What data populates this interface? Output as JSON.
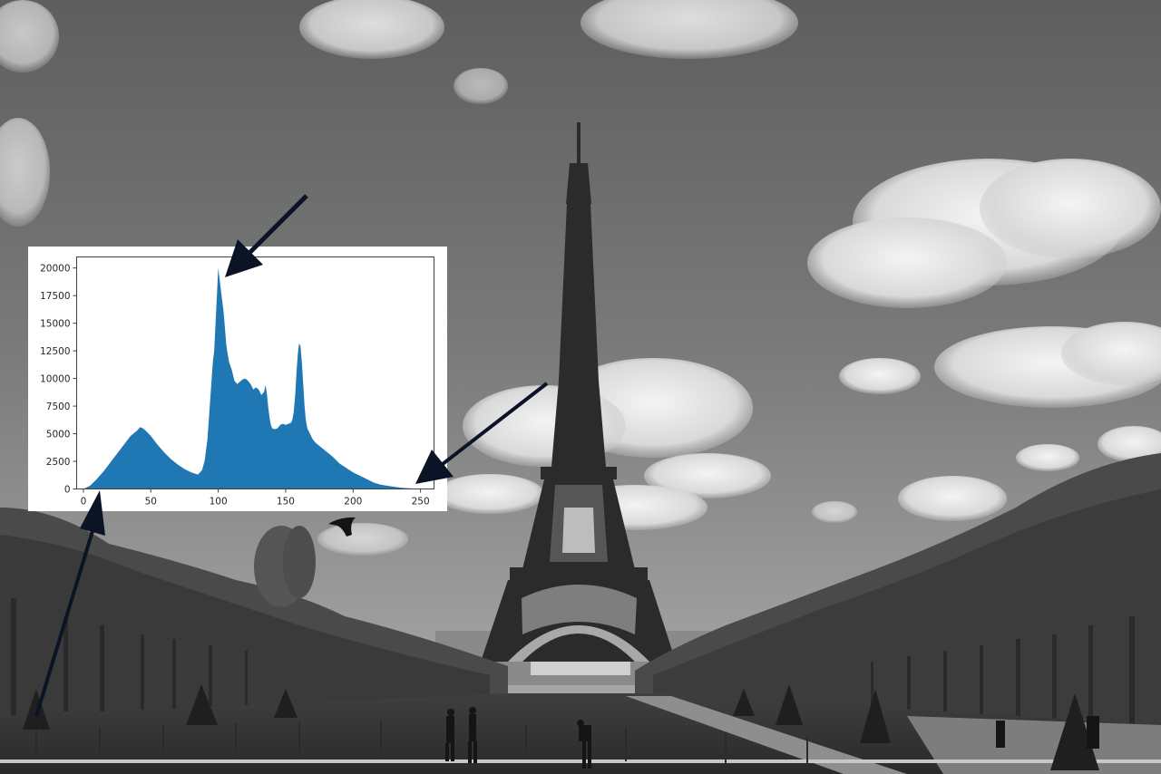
{
  "chart_data": {
    "type": "area",
    "title": "",
    "xlabel": "",
    "ylabel": "",
    "xlim": [
      -5,
      260
    ],
    "ylim": [
      0,
      21000
    ],
    "grid": false,
    "legend": "none",
    "color": "#1f77b4",
    "x_ticks": [
      0,
      50,
      100,
      150,
      200,
      250
    ],
    "x_tick_labels": [
      "0",
      "50",
      "100",
      "150",
      "200",
      "250"
    ],
    "y_ticks": [
      0,
      2500,
      5000,
      7500,
      10000,
      12500,
      15000,
      17500,
      20000
    ],
    "y_tick_labels": [
      "0",
      "2500",
      "5000",
      "7500",
      "10000",
      "12500",
      "15000",
      "17500",
      "20000"
    ],
    "x": [
      0,
      5,
      10,
      15,
      20,
      25,
      30,
      35,
      40,
      42,
      44,
      46,
      50,
      55,
      60,
      65,
      70,
      75,
      80,
      85,
      88,
      90,
      92,
      94,
      96,
      97,
      98,
      99,
      100,
      101,
      102,
      103,
      104,
      105,
      106,
      107,
      108,
      110,
      112,
      114,
      116,
      118,
      120,
      122,
      124,
      126,
      128,
      130,
      132,
      134,
      135,
      136,
      137,
      138,
      139,
      140,
      142,
      144,
      146,
      148,
      150,
      152,
      154,
      155,
      156,
      157,
      158,
      159,
      160,
      161,
      162,
      163,
      164,
      165,
      166,
      168,
      170,
      172,
      175,
      178,
      180,
      185,
      190,
      195,
      200,
      205,
      210,
      215,
      220,
      225,
      230,
      235,
      240,
      245,
      250,
      255
    ],
    "y": [
      0,
      300,
      900,
      1600,
      2400,
      3200,
      4000,
      4800,
      5300,
      5600,
      5500,
      5300,
      4800,
      4000,
      3300,
      2700,
      2200,
      1800,
      1500,
      1300,
      1700,
      2600,
      4500,
      8000,
      11500,
      12500,
      15000,
      17500,
      20000,
      19000,
      18000,
      17000,
      16000,
      14500,
      13000,
      12200,
      11500,
      10800,
      9800,
      9500,
      9700,
      9900,
      10000,
      9800,
      9500,
      9000,
      9200,
      9000,
      8500,
      8800,
      9400,
      8700,
      7500,
      6500,
      5800,
      5500,
      5400,
      5500,
      5800,
      5900,
      5800,
      5900,
      6000,
      6300,
      7000,
      8400,
      10500,
      12200,
      13200,
      12900,
      11500,
      9500,
      7500,
      6200,
      5500,
      5000,
      4500,
      4200,
      3900,
      3600,
      3400,
      2900,
      2300,
      1900,
      1500,
      1200,
      900,
      600,
      400,
      300,
      200,
      120,
      70,
      40,
      20,
      10
    ]
  }
}
